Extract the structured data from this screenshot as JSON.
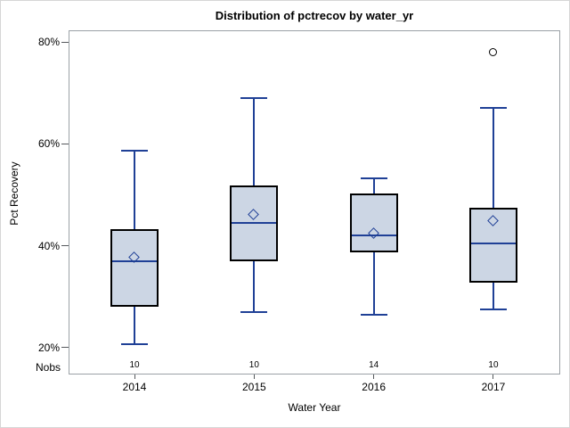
{
  "title": "Distribution of pctrecov by water_yr",
  "colors": {
    "box_fill": "#ccd6e4",
    "box_edge": "#000000",
    "line_blue": "#1f4096",
    "outlier_edge": "#000000",
    "frame_gray": "#9ba1a6",
    "tick_gray": "#55585c",
    "text": "#000000",
    "background": "#ffffff",
    "figure_border": "#d6d6d6"
  },
  "chart_data": {
    "type": "box",
    "title": "Distribution of pctrecov by water_yr",
    "xlabel": "Water Year",
    "ylabel": "Pct Recovery",
    "categories": [
      "2014",
      "2015",
      "2016",
      "2017"
    ],
    "nobs_label": "Nobs",
    "nobs": [
      "10",
      "10",
      "14",
      "10"
    ],
    "y_ticks": [
      {
        "value": 80,
        "label": "80%"
      },
      {
        "value": 60,
        "label": "60%"
      },
      {
        "value": 40,
        "label": "40%"
      },
      {
        "value": 20,
        "label": "20%"
      }
    ],
    "ylim": [
      14.8,
      82.3
    ],
    "grid": false,
    "legend": "none",
    "series": [
      {
        "category": "2014",
        "n": 10,
        "whisker_low": 20.7,
        "q1": 28.0,
        "median": 37.0,
        "mean": 37.6,
        "q3": 43.2,
        "whisker_high": 58.6,
        "outliers": []
      },
      {
        "category": "2015",
        "n": 10,
        "whisker_low": 27.0,
        "q1": 36.9,
        "median": 44.5,
        "mean": 46.1,
        "q3": 51.8,
        "whisker_high": 69.0,
        "outliers": []
      },
      {
        "category": "2016",
        "n": 14,
        "whisker_low": 26.5,
        "q1": 38.7,
        "median": 42.0,
        "mean": 42.4,
        "q3": 50.3,
        "whisker_high": 53.3,
        "outliers": []
      },
      {
        "category": "2017",
        "n": 10,
        "whisker_low": 27.5,
        "q1": 32.8,
        "median": 40.4,
        "mean": 44.9,
        "q3": 47.5,
        "whisker_high": 67.0,
        "outliers": [
          78
        ]
      }
    ]
  }
}
